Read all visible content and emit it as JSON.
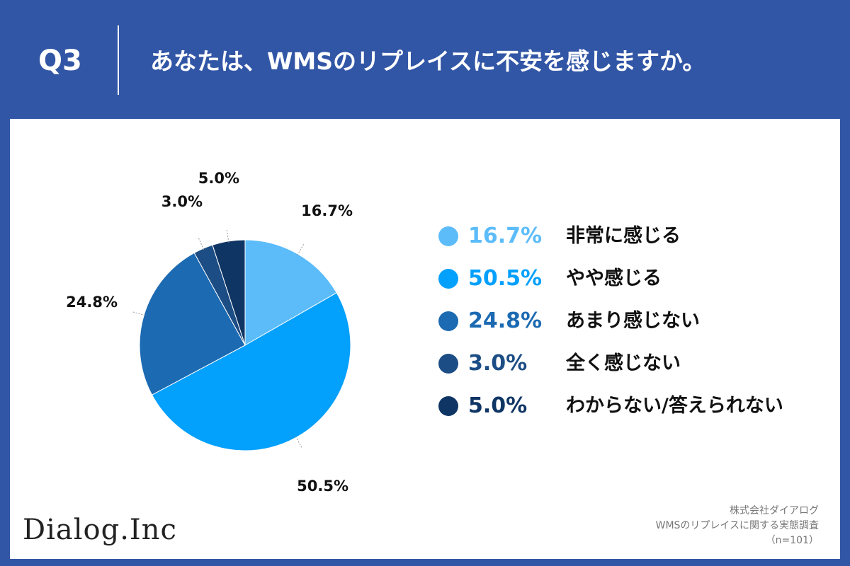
{
  "header": {
    "q_label": "Q3",
    "question": "あなたは、WMSのリプレイスに不安を感じますか。"
  },
  "chart_data": {
    "type": "pie",
    "title": "",
    "categories": [
      "非常に感じる",
      "やや感じる",
      "あまり感じない",
      "全く感じない",
      "わからない/答えられない"
    ],
    "values": [
      16.7,
      50.5,
      24.8,
      3.0,
      5.0
    ],
    "value_labels": [
      "16.7%",
      "50.5%",
      "24.8%",
      "3.0%",
      "5.0%"
    ],
    "colors": [
      "#5cbcfa",
      "#03a0fc",
      "#1c6ab2",
      "#1c4d85",
      "#0f3564"
    ],
    "legend_placement": "right",
    "start_angle_deg": 0,
    "direction": "clockwise"
  },
  "source": {
    "company": "株式会社ダイアログ",
    "survey": "WMSのリプレイスに関する実態調査",
    "sample": "（n=101）"
  },
  "logo": {
    "text": "Dialog.Inc"
  }
}
